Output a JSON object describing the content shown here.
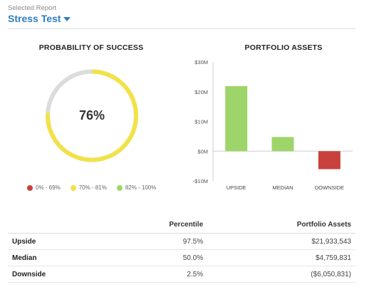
{
  "header": {
    "caption": "Selected Report",
    "report_name": "Stress Test"
  },
  "probability": {
    "title": "PROBABILITY OF SUCCESS",
    "value_label": "76%",
    "value": 76,
    "colors": {
      "track": "#dcdcdc",
      "fill": "#f1e24a"
    },
    "legend": [
      {
        "label": "0% - 69%",
        "color": "#c9413d"
      },
      {
        "label": "70% - 81%",
        "color": "#f1e24a"
      },
      {
        "label": "82% - 100%",
        "color": "#9ed56a"
      }
    ]
  },
  "assets": {
    "title": "PORTFOLIO ASSETS"
  },
  "chart_data": {
    "type": "bar",
    "categories": [
      "UPSIDE",
      "MEDIAN",
      "DOWNSIDE"
    ],
    "values": [
      21.9,
      4.76,
      -6.05
    ],
    "colors": [
      "#9ed56a",
      "#9ed56a",
      "#c9413d"
    ],
    "ylim": [
      -10,
      30
    ],
    "yticks": [
      -10,
      0,
      10,
      20,
      30
    ],
    "ytick_labels": [
      "-$10M",
      "$0M",
      "$10M",
      "$20M",
      "$30M"
    ],
    "xlabel": "",
    "ylabel": "",
    "title": "PORTFOLIO ASSETS"
  },
  "table": {
    "headers": [
      "",
      "Percentile",
      "Portfolio Assets"
    ],
    "rows": [
      {
        "label": "Upside",
        "percentile": "97.5%",
        "assets": "$21,933,543"
      },
      {
        "label": "Median",
        "percentile": "50.0%",
        "assets": "$4,759,831"
      },
      {
        "label": "Downside",
        "percentile": "2.5%",
        "assets": "($6,050,831)"
      }
    ]
  }
}
